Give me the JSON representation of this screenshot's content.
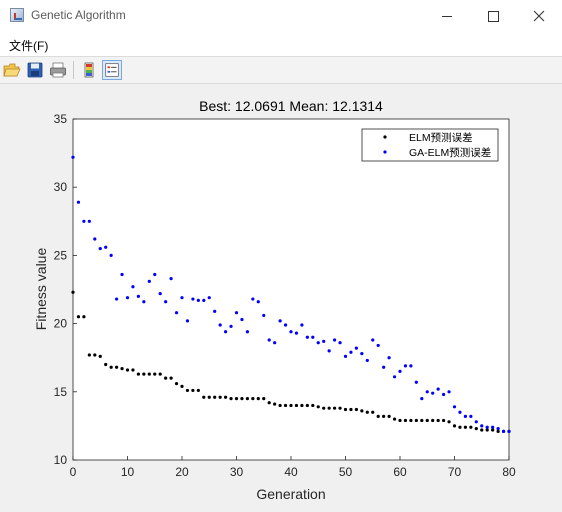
{
  "window": {
    "title": "Genetic Algorithm"
  },
  "menu": {
    "file_label": "文件(F)"
  },
  "toolbar": {
    "icons": [
      "open-icon",
      "save-icon",
      "print-icon",
      "colorbar-icon",
      "legend-icon"
    ]
  },
  "chart_data": {
    "type": "scatter",
    "title": "Best: 12.0691 Mean: 12.1314",
    "xlabel": "Generation",
    "ylabel": "Fitness value",
    "xlim": [
      0,
      80
    ],
    "ylim": [
      10,
      35
    ],
    "xticks": [
      0,
      10,
      20,
      30,
      40,
      50,
      60,
      70,
      80
    ],
    "yticks": [
      10,
      15,
      20,
      25,
      30,
      35
    ],
    "grid": false,
    "legend_position": "top-right",
    "series": [
      {
        "name": "ELM预测误差",
        "color": "#000000",
        "x": [
          0,
          1,
          2,
          3,
          4,
          5,
          6,
          7,
          8,
          9,
          10,
          11,
          12,
          13,
          14,
          15,
          16,
          17,
          18,
          19,
          20,
          21,
          22,
          23,
          24,
          25,
          26,
          27,
          28,
          29,
          30,
          31,
          32,
          33,
          34,
          35,
          36,
          37,
          38,
          39,
          40,
          41,
          42,
          43,
          44,
          45,
          46,
          47,
          48,
          49,
          50,
          51,
          52,
          53,
          54,
          55,
          56,
          57,
          58,
          59,
          60,
          61,
          62,
          63,
          64,
          65,
          66,
          67,
          68,
          69,
          70,
          71,
          72,
          73,
          74,
          75,
          76,
          77,
          78,
          79,
          80
        ],
        "values": [
          22.3,
          20.5,
          20.5,
          17.7,
          17.7,
          17.6,
          17.0,
          16.8,
          16.8,
          16.7,
          16.6,
          16.6,
          16.3,
          16.3,
          16.3,
          16.3,
          16.3,
          16.0,
          16.0,
          15.6,
          15.4,
          15.1,
          15.1,
          15.1,
          14.6,
          14.6,
          14.6,
          14.6,
          14.6,
          14.5,
          14.5,
          14.5,
          14.5,
          14.5,
          14.5,
          14.5,
          14.2,
          14.1,
          14.0,
          14.0,
          14.0,
          14.0,
          14.0,
          14.0,
          14.0,
          13.9,
          13.8,
          13.8,
          13.8,
          13.8,
          13.7,
          13.7,
          13.7,
          13.6,
          13.5,
          13.5,
          13.2,
          13.2,
          13.2,
          13.0,
          12.9,
          12.9,
          12.9,
          12.9,
          12.9,
          12.9,
          12.9,
          12.9,
          12.9,
          12.8,
          12.5,
          12.4,
          12.4,
          12.4,
          12.3,
          12.2,
          12.2,
          12.2,
          12.1,
          12.1,
          12.1
        ]
      },
      {
        "name": "GA-ELM预测误差",
        "color": "#0000ff",
        "x": [
          0,
          1,
          2,
          3,
          4,
          5,
          6,
          7,
          8,
          9,
          10,
          11,
          12,
          13,
          14,
          15,
          16,
          17,
          18,
          19,
          20,
          21,
          22,
          23,
          24,
          25,
          26,
          27,
          28,
          29,
          30,
          31,
          32,
          33,
          34,
          35,
          36,
          37,
          38,
          39,
          40,
          41,
          42,
          43,
          44,
          45,
          46,
          47,
          48,
          49,
          50,
          51,
          52,
          53,
          54,
          55,
          56,
          57,
          58,
          59,
          60,
          61,
          62,
          63,
          64,
          65,
          66,
          67,
          68,
          69,
          70,
          71,
          72,
          73,
          74,
          75,
          76,
          77,
          78,
          79,
          80
        ],
        "values": [
          32.2,
          28.9,
          27.5,
          27.5,
          26.2,
          25.5,
          25.6,
          25.0,
          21.8,
          23.6,
          21.9,
          22.7,
          22.0,
          21.6,
          23.1,
          23.6,
          22.2,
          21.6,
          23.3,
          20.8,
          21.9,
          20.2,
          21.8,
          21.7,
          21.7,
          21.9,
          20.9,
          19.9,
          19.4,
          19.8,
          20.8,
          20.3,
          19.4,
          21.8,
          21.6,
          20.6,
          18.8,
          18.6,
          20.2,
          19.9,
          19.4,
          19.3,
          19.9,
          19.0,
          19.0,
          18.6,
          18.7,
          18.0,
          18.8,
          18.6,
          17.6,
          17.9,
          18.2,
          17.8,
          17.3,
          18.8,
          18.4,
          16.8,
          17.5,
          16.1,
          16.5,
          16.9,
          16.9,
          15.7,
          14.5,
          15.0,
          14.9,
          15.2,
          14.8,
          15.0,
          13.9,
          13.5,
          13.2,
          13.2,
          12.8,
          12.5,
          12.4,
          12.4,
          12.3,
          12.1,
          12.1
        ]
      }
    ]
  }
}
